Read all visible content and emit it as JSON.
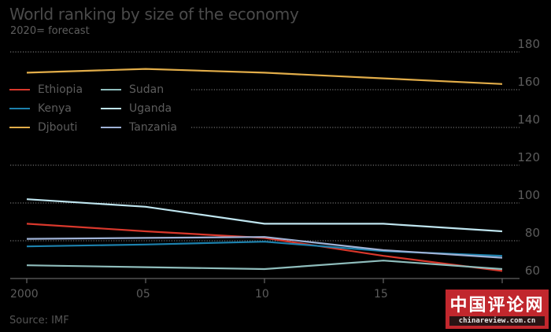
{
  "chart_data": {
    "type": "line",
    "title": "World ranking by size of the economy",
    "subtitle": "2020= forecast",
    "source": "Source: IMF",
    "xlabel": "",
    "ylabel": "",
    "x": [
      2000,
      2005,
      2010,
      2015,
      2020
    ],
    "x_tick_labels": [
      "2000",
      "05",
      "10",
      "15",
      ""
    ],
    "y_ticks": [
      60,
      80,
      100,
      120,
      140,
      160,
      180
    ],
    "y_tick_labels": [
      "60",
      "80",
      "100",
      "120",
      "140",
      "160",
      "180"
    ],
    "ylim": [
      60,
      180
    ],
    "xlim": [
      2000,
      2020
    ],
    "grid": "horizontal-dotted",
    "legend_position": "top-left",
    "series": [
      {
        "name": "Ethiopia",
        "color": "#d9382c",
        "values": [
          89,
          85,
          81.5,
          72,
          64
        ]
      },
      {
        "name": "Kenya",
        "color": "#1c81ad",
        "values": [
          77,
          78,
          79.5,
          74.5,
          72
        ]
      },
      {
        "name": "Djbouti",
        "color": "#e2ad49",
        "values": [
          169,
          171,
          169,
          166,
          163
        ]
      },
      {
        "name": "Sudan",
        "color": "#8fbdbc",
        "values": [
          67,
          66,
          65,
          69.5,
          65
        ]
      },
      {
        "name": "Uganda",
        "color": "#bfe5ef",
        "values": [
          102,
          98,
          89,
          89,
          85
        ]
      },
      {
        "name": "Tanzania",
        "color": "#9fb2d6",
        "values": [
          81,
          81.5,
          82,
          75,
          71
        ]
      }
    ]
  },
  "watermark": {
    "chinese": "中国评论网",
    "domain": "chinareview.com.cn"
  }
}
